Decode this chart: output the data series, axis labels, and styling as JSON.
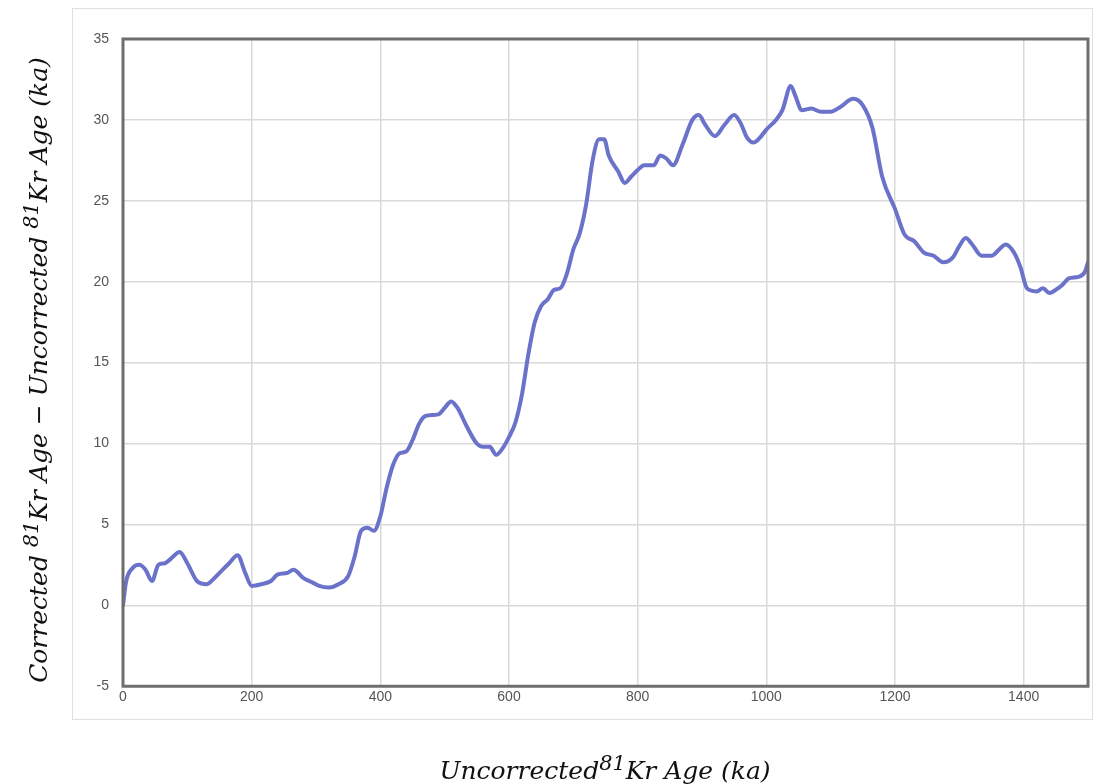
{
  "chart_data": {
    "type": "line",
    "xlabel": "Uncorrected$^{81}$Kr Age (ka)",
    "ylabel": "Corrected $^{81}$Kr Age − Uncorrected $^{81}$Kr Age (ka)",
    "xlim": [
      0,
      1500
    ],
    "xticks": [
      0,
      200,
      400,
      600,
      800,
      1000,
      1200,
      1400
    ],
    "ylim": [
      -5,
      35
    ],
    "yticks": [
      -5,
      0,
      5,
      10,
      15,
      20,
      25,
      30,
      35
    ],
    "grid": true,
    "legend": false,
    "marker": "none",
    "line_style": "solid",
    "series": [
      {
        "color": "#6b72c9",
        "x": [
          0,
          5,
          15,
          25,
          35,
          45,
          55,
          65,
          75,
          88,
          100,
          115,
          130,
          140,
          150,
          165,
          178,
          190,
          200,
          215,
          230,
          240,
          255,
          265,
          280,
          295,
          305,
          320,
          335,
          350,
          360,
          370,
          380,
          390,
          400,
          410,
          420,
          430,
          440,
          450,
          460,
          470,
          490,
          500,
          510,
          520,
          535,
          550,
          560,
          570,
          580,
          590,
          600,
          610,
          620,
          630,
          640,
          650,
          660,
          670,
          680,
          690,
          700,
          710,
          720,
          730,
          740,
          748,
          755,
          770,
          780,
          790,
          800,
          810,
          825,
          835,
          845,
          855,
          870,
          885,
          895,
          905,
          920,
          935,
          950,
          960,
          970,
          980,
          990,
          1000,
          1015,
          1025,
          1038,
          1045,
          1055,
          1070,
          1085,
          1100,
          1115,
          1135,
          1150,
          1165,
          1180,
          1200,
          1215,
          1230,
          1245,
          1260,
          1275,
          1290,
          1300,
          1310,
          1320,
          1335,
          1350,
          1362,
          1372,
          1385,
          1395,
          1405,
          1420,
          1430,
          1440,
          1450,
          1460,
          1470,
          1485,
          1495,
          1500
        ],
        "values": [
          0,
          1.5,
          2.3,
          2.5,
          2.2,
          1.5,
          2.5,
          2.6,
          2.9,
          3.3,
          2.6,
          1.5,
          1.3,
          1.6,
          2.0,
          2.6,
          3.1,
          2.0,
          1.2,
          1.3,
          1.5,
          1.9,
          2.0,
          2.2,
          1.7,
          1.4,
          1.2,
          1.1,
          1.3,
          1.8,
          3.0,
          4.6,
          4.8,
          4.6,
          5.5,
          7.3,
          8.7,
          9.4,
          9.5,
          10.2,
          11.2,
          11.7,
          11.8,
          12.2,
          12.6,
          12.2,
          11.0,
          10.0,
          9.8,
          9.8,
          9.3,
          9.7,
          10.4,
          11.3,
          13.0,
          15.5,
          17.5,
          18.5,
          18.9,
          19.5,
          19.6,
          20.5,
          22.0,
          23.0,
          24.8,
          27.5,
          28.8,
          28.8,
          27.8,
          26.8,
          26.1,
          26.5,
          26.9,
          27.2,
          27.2,
          27.8,
          27.6,
          27.2,
          28.5,
          30.0,
          30.3,
          29.7,
          29.0,
          29.7,
          30.3,
          29.8,
          28.9,
          28.6,
          28.9,
          29.4,
          30.0,
          30.6,
          32.1,
          31.5,
          30.6,
          30.7,
          30.5,
          30.5,
          30.8,
          31.3,
          30.9,
          29.5,
          26.5,
          24.5,
          22.9,
          22.5,
          21.8,
          21.6,
          21.2,
          21.5,
          22.2,
          22.7,
          22.3,
          21.6,
          21.6,
          22.0,
          22.3,
          21.8,
          20.9,
          19.6,
          19.4,
          19.6,
          19.3,
          19.5,
          19.8,
          20.2,
          20.3,
          20.6,
          21.2
        ]
      }
    ]
  }
}
